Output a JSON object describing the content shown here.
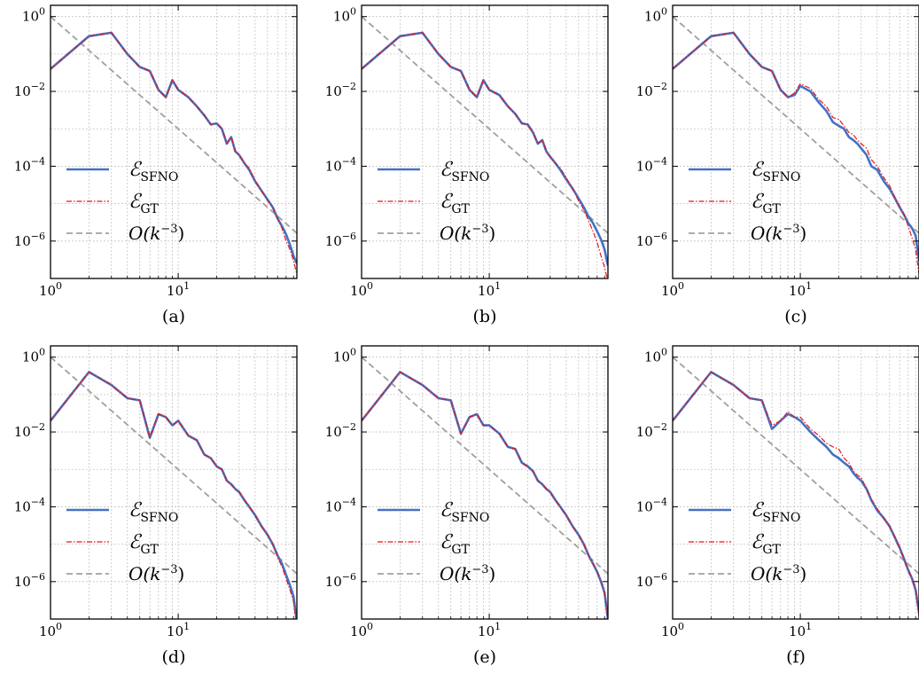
{
  "figure": {
    "colors": {
      "sfno": "#4472c4",
      "gt": "#e8141c",
      "ref": "#a0a0a0",
      "grid": "#c4c4c4"
    }
  },
  "chart_data": [
    {
      "caption": "(a)",
      "type": "line",
      "xscale": "log",
      "yscale": "log",
      "xlim": [
        1,
        85
      ],
      "ylim": [
        1e-07,
        2
      ],
      "xticks": [
        "10^0",
        "10^1"
      ],
      "yticks": [
        "10^0",
        "10^-2",
        "10^-4",
        "10^-6"
      ],
      "grid": true,
      "legend_position": "lower-left",
      "x": [
        1,
        2,
        3,
        4,
        5,
        6,
        7,
        8,
        9,
        10,
        12,
        14,
        16,
        18,
        20,
        22,
        24,
        26,
        28,
        30,
        33,
        36,
        40,
        45,
        50,
        55,
        60,
        65,
        70,
        75,
        80,
        85
      ],
      "series": [
        {
          "name": "E_SFNO",
          "legend_main": "ℰ",
          "legend_sub": "SFNO",
          "style": "solid",
          "values": [
            0.04,
            0.3,
            0.37,
            0.1,
            0.045,
            0.035,
            0.011,
            0.007,
            0.02,
            0.011,
            0.007,
            0.004,
            0.0023,
            0.0013,
            0.0014,
            0.001,
            0.0004,
            0.0006,
            0.00025,
            0.0002,
            0.00012,
            8e-05,
            4e-05,
            2.2e-05,
            1.3e-05,
            8e-06,
            4e-06,
            2.5e-06,
            1.5e-06,
            8e-07,
            4e-07,
            2.5e-07
          ]
        },
        {
          "name": "E_GT",
          "legend_main": "ℰ",
          "legend_sub": "GT",
          "style": "dashdot",
          "values": [
            0.04,
            0.3,
            0.37,
            0.1,
            0.045,
            0.035,
            0.011,
            0.007,
            0.02,
            0.011,
            0.007,
            0.004,
            0.0023,
            0.0013,
            0.0014,
            0.001,
            0.0004,
            0.0006,
            0.00025,
            0.0002,
            0.00012,
            9e-05,
            4e-05,
            2.2e-05,
            1.2e-05,
            8e-06,
            4e-06,
            2.2e-06,
            1e-06,
            6e-07,
            3e-07,
            1.3e-07
          ]
        },
        {
          "name": "O(k^-3)",
          "legend_text": "O(k",
          "legend_sup": "−3",
          "legend_tail": ")",
          "style": "dashed",
          "values": [
            1.0,
            0.125,
            0.037,
            0.0156,
            0.008,
            0.00463,
            0.00292,
            0.00195,
            0.00137,
            0.001,
            0.000579,
            0.000364,
            0.000244,
            0.000171,
            0.000125,
            9.39e-05,
            7.23e-05,
            5.69e-05,
            4.55e-05,
            3.7e-05,
            2.78e-05,
            2.14e-05,
            1.56e-05,
            1.1e-05,
            8e-06,
            6.01e-06,
            4.63e-06,
            3.64e-06,
            2.92e-06,
            2.37e-06,
            1.95e-06,
            1.63e-06
          ]
        }
      ]
    },
    {
      "caption": "(b)",
      "type": "line",
      "xscale": "log",
      "yscale": "log",
      "xlim": [
        1,
        85
      ],
      "ylim": [
        1e-07,
        2
      ],
      "xticks": [
        "10^0",
        "10^1"
      ],
      "yticks": [
        "10^0",
        "10^-2",
        "10^-4",
        "10^-6"
      ],
      "grid": true,
      "legend_position": "lower-left",
      "x": [
        1,
        2,
        3,
        4,
        5,
        6,
        7,
        8,
        9,
        10,
        12,
        14,
        16,
        18,
        20,
        22,
        24,
        26,
        28,
        30,
        33,
        36,
        40,
        45,
        50,
        55,
        60,
        65,
        70,
        75,
        80,
        85
      ],
      "series": [
        {
          "name": "E_SFNO",
          "legend_main": "ℰ",
          "legend_sub": "SFNO",
          "style": "solid",
          "values": [
            0.04,
            0.3,
            0.37,
            0.1,
            0.045,
            0.035,
            0.011,
            0.007,
            0.02,
            0.011,
            0.008,
            0.004,
            0.0025,
            0.0014,
            0.0013,
            0.0008,
            0.0004,
            0.0005,
            0.00025,
            0.00018,
            0.00012,
            8e-05,
            4.5e-05,
            2.5e-05,
            1.4e-05,
            8e-06,
            4.5e-06,
            3e-06,
            1.8e-06,
            1.1e-06,
            6e-07,
            2.2e-07
          ]
        },
        {
          "name": "E_GT",
          "legend_main": "ℰ",
          "legend_sub": "GT",
          "style": "dashdot",
          "values": [
            0.04,
            0.3,
            0.37,
            0.1,
            0.045,
            0.035,
            0.011,
            0.007,
            0.02,
            0.011,
            0.008,
            0.004,
            0.0025,
            0.0014,
            0.0013,
            0.0008,
            0.0004,
            0.0005,
            0.00025,
            0.00018,
            0.00012,
            9e-05,
            5e-05,
            2.5e-05,
            1.2e-05,
            7e-06,
            3.5e-06,
            1.8e-06,
            9e-07,
            4e-07,
            2e-07,
            8e-08
          ]
        },
        {
          "name": "O(k^-3)",
          "legend_text": "O(k",
          "legend_sup": "−3",
          "legend_tail": ")",
          "style": "dashed",
          "values": [
            1.0,
            0.125,
            0.037,
            0.0156,
            0.008,
            0.00463,
            0.00292,
            0.00195,
            0.00137,
            0.001,
            0.000579,
            0.000364,
            0.000244,
            0.000171,
            0.000125,
            9.39e-05,
            7.23e-05,
            5.69e-05,
            4.55e-05,
            3.7e-05,
            2.78e-05,
            2.14e-05,
            1.56e-05,
            1.1e-05,
            8e-06,
            6.01e-06,
            4.63e-06,
            3.64e-06,
            2.92e-06,
            2.37e-06,
            1.95e-06,
            1.63e-06
          ]
        }
      ]
    },
    {
      "caption": "(c)",
      "type": "line",
      "xscale": "log",
      "yscale": "log",
      "xlim": [
        1,
        85
      ],
      "ylim": [
        1e-07,
        2
      ],
      "xticks": [
        "10^0",
        "10^1"
      ],
      "yticks": [
        "10^0",
        "10^-2",
        "10^-4",
        "10^-6"
      ],
      "grid": true,
      "legend_position": "lower-left",
      "x": [
        1,
        2,
        3,
        4,
        5,
        6,
        7,
        8,
        9,
        10,
        12,
        14,
        16,
        18,
        20,
        22,
        24,
        26,
        28,
        30,
        33,
        36,
        40,
        45,
        50,
        55,
        60,
        65,
        70,
        75,
        80,
        85
      ],
      "series": [
        {
          "name": "E_SFNO",
          "legend_main": "ℰ",
          "legend_sub": "SFNO",
          "style": "solid",
          "values": [
            0.04,
            0.3,
            0.37,
            0.1,
            0.045,
            0.035,
            0.011,
            0.007,
            0.008,
            0.014,
            0.01,
            0.005,
            0.003,
            0.0015,
            0.0012,
            0.001,
            0.0006,
            0.0005,
            0.0004,
            0.0003,
            0.0002,
            0.0001,
            8e-05,
            4e-05,
            2.5e-05,
            1.4e-05,
            8e-06,
            5e-06,
            3e-06,
            2.2e-06,
            1.4e-06,
            3e-07
          ]
        },
        {
          "name": "E_GT",
          "legend_main": "ℰ",
          "legend_sub": "GT",
          "style": "dashdot",
          "values": [
            0.04,
            0.3,
            0.37,
            0.1,
            0.045,
            0.035,
            0.011,
            0.007,
            0.009,
            0.016,
            0.012,
            0.006,
            0.004,
            0.002,
            0.0018,
            0.0012,
            0.0008,
            0.0007,
            0.0005,
            0.0004,
            0.0003,
            0.00015,
            0.0001,
            5e-05,
            3e-05,
            1.5e-05,
            8e-06,
            5e-06,
            2.5e-06,
            1.2e-06,
            6e-07,
            1.3e-07
          ]
        },
        {
          "name": "O(k^-3)",
          "legend_text": "O(k",
          "legend_sup": "−3",
          "legend_tail": ")",
          "style": "dashed",
          "values": [
            1.0,
            0.125,
            0.037,
            0.0156,
            0.008,
            0.00463,
            0.00292,
            0.00195,
            0.00137,
            0.001,
            0.000579,
            0.000364,
            0.000244,
            0.000171,
            0.000125,
            9.39e-05,
            7.23e-05,
            5.69e-05,
            4.55e-05,
            3.7e-05,
            2.78e-05,
            2.14e-05,
            1.56e-05,
            1.1e-05,
            8e-06,
            6.01e-06,
            4.63e-06,
            3.64e-06,
            2.92e-06,
            2.37e-06,
            1.95e-06,
            1.63e-06
          ]
        }
      ]
    },
    {
      "caption": "(d)",
      "type": "line",
      "xscale": "log",
      "yscale": "log",
      "xlim": [
        1,
        85
      ],
      "ylim": [
        1e-07,
        2
      ],
      "xticks": [
        "10^0",
        "10^1"
      ],
      "yticks": [
        "10^0",
        "10^-2",
        "10^-4",
        "10^-6"
      ],
      "grid": true,
      "legend_position": "lower-left",
      "x": [
        1,
        2,
        3,
        4,
        5,
        6,
        7,
        8,
        9,
        10,
        12,
        14,
        16,
        18,
        20,
        22,
        24,
        26,
        28,
        30,
        33,
        36,
        40,
        45,
        50,
        55,
        60,
        65,
        70,
        75,
        80,
        85
      ],
      "series": [
        {
          "name": "E_SFNO",
          "legend_main": "ℰ",
          "legend_sub": "SFNO",
          "style": "solid",
          "values": [
            0.02,
            0.4,
            0.18,
            0.08,
            0.07,
            0.007,
            0.03,
            0.025,
            0.015,
            0.02,
            0.008,
            0.006,
            0.0025,
            0.002,
            0.0012,
            0.001,
            0.0005,
            0.0004,
            0.0003,
            0.00025,
            0.00015,
            0.0001,
            6e-05,
            3e-05,
            1.8e-05,
            1e-05,
            5e-06,
            3e-06,
            1.5e-06,
            8e-07,
            4e-07,
            8e-08
          ]
        },
        {
          "name": "E_GT",
          "legend_main": "ℰ",
          "legend_sub": "GT",
          "style": "dashdot",
          "values": [
            0.02,
            0.4,
            0.18,
            0.08,
            0.07,
            0.007,
            0.03,
            0.025,
            0.015,
            0.02,
            0.008,
            0.006,
            0.0025,
            0.002,
            0.0012,
            0.001,
            0.0005,
            0.0004,
            0.0003,
            0.00025,
            0.00015,
            0.0001,
            6e-05,
            3e-05,
            1.8e-05,
            1e-05,
            4.5e-06,
            2.5e-06,
            1.2e-06,
            6e-07,
            3e-07,
            6e-08
          ]
        },
        {
          "name": "O(k^-3)",
          "legend_text": "O(k",
          "legend_sup": "−3",
          "legend_tail": ")",
          "style": "dashed",
          "values": [
            1.0,
            0.125,
            0.037,
            0.0156,
            0.008,
            0.00463,
            0.00292,
            0.00195,
            0.00137,
            0.001,
            0.000579,
            0.000364,
            0.000244,
            0.000171,
            0.000125,
            9.39e-05,
            7.23e-05,
            5.69e-05,
            4.55e-05,
            3.7e-05,
            2.78e-05,
            2.14e-05,
            1.56e-05,
            1.1e-05,
            8e-06,
            6.01e-06,
            4.63e-06,
            3.64e-06,
            2.92e-06,
            2.37e-06,
            1.95e-06,
            1.63e-06
          ]
        }
      ]
    },
    {
      "caption": "(e)",
      "type": "line",
      "xscale": "log",
      "yscale": "log",
      "xlim": [
        1,
        85
      ],
      "ylim": [
        1e-07,
        2
      ],
      "xticks": [
        "10^0",
        "10^1"
      ],
      "yticks": [
        "10^0",
        "10^-2",
        "10^-4",
        "10^-6"
      ],
      "grid": true,
      "legend_position": "lower-left",
      "x": [
        1,
        2,
        3,
        4,
        5,
        6,
        7,
        8,
        9,
        10,
        12,
        14,
        16,
        18,
        20,
        22,
        24,
        26,
        28,
        30,
        33,
        36,
        40,
        45,
        50,
        55,
        60,
        65,
        70,
        75,
        80,
        85
      ],
      "series": [
        {
          "name": "E_SFNO",
          "legend_main": "ℰ",
          "legend_sub": "SFNO",
          "style": "solid",
          "values": [
            0.02,
            0.4,
            0.18,
            0.08,
            0.07,
            0.009,
            0.025,
            0.03,
            0.015,
            0.015,
            0.009,
            0.004,
            0.0035,
            0.0015,
            0.0012,
            0.0009,
            0.0005,
            0.0004,
            0.0003,
            0.00025,
            0.00015,
            0.0001,
            6e-05,
            3e-05,
            1.8e-05,
            1e-05,
            5e-06,
            3e-06,
            1.8e-06,
            1e-06,
            5e-07,
            1e-07
          ]
        },
        {
          "name": "E_GT",
          "legend_main": "ℰ",
          "legend_sub": "GT",
          "style": "dashdot",
          "values": [
            0.02,
            0.4,
            0.18,
            0.08,
            0.07,
            0.009,
            0.025,
            0.03,
            0.015,
            0.015,
            0.009,
            0.004,
            0.0035,
            0.0015,
            0.0012,
            0.0009,
            0.0005,
            0.0004,
            0.0003,
            0.00025,
            0.00015,
            0.0001,
            6e-05,
            3e-05,
            1.8e-05,
            1e-05,
            5e-06,
            3e-06,
            1.8e-06,
            1e-06,
            5e-07,
            1e-07
          ]
        },
        {
          "name": "O(k^-3)",
          "legend_text": "O(k",
          "legend_sup": "−3",
          "legend_tail": ")",
          "style": "dashed",
          "values": [
            1.0,
            0.125,
            0.037,
            0.0156,
            0.008,
            0.00463,
            0.00292,
            0.00195,
            0.00137,
            0.001,
            0.000579,
            0.000364,
            0.000244,
            0.000171,
            0.000125,
            9.39e-05,
            7.23e-05,
            5.69e-05,
            4.55e-05,
            3.7e-05,
            2.78e-05,
            2.14e-05,
            1.56e-05,
            1.1e-05,
            8e-06,
            6.01e-06,
            4.63e-06,
            3.64e-06,
            2.92e-06,
            2.37e-06,
            1.95e-06,
            1.63e-06
          ]
        }
      ]
    },
    {
      "caption": "(f)",
      "type": "line",
      "xscale": "log",
      "yscale": "log",
      "xlim": [
        1,
        85
      ],
      "ylim": [
        1e-07,
        2
      ],
      "xticks": [
        "10^0",
        "10^1"
      ],
      "yticks": [
        "10^0",
        "10^-2",
        "10^-4",
        "10^-6"
      ],
      "grid": true,
      "legend_position": "lower-left",
      "x": [
        1,
        2,
        3,
        4,
        5,
        6,
        7,
        8,
        9,
        10,
        12,
        14,
        16,
        18,
        20,
        22,
        24,
        26,
        28,
        30,
        33,
        36,
        40,
        45,
        50,
        55,
        60,
        65,
        70,
        75,
        80,
        85
      ],
      "series": [
        {
          "name": "E_SFNO",
          "legend_main": "ℰ",
          "legend_sub": "SFNO",
          "style": "solid",
          "values": [
            0.02,
            0.4,
            0.18,
            0.08,
            0.07,
            0.012,
            0.02,
            0.03,
            0.025,
            0.02,
            0.01,
            0.006,
            0.004,
            0.0025,
            0.002,
            0.0015,
            0.0012,
            0.0008,
            0.0006,
            0.0005,
            0.0003,
            0.00015,
            8e-05,
            5e-05,
            3e-05,
            1.5e-05,
            8e-06,
            4e-06,
            2e-06,
            1.2e-06,
            6e-07,
            1.5e-07
          ]
        },
        {
          "name": "E_GT",
          "legend_main": "ℰ",
          "legend_sub": "GT",
          "style": "dashdot",
          "values": [
            0.02,
            0.4,
            0.18,
            0.08,
            0.07,
            0.015,
            0.02,
            0.035,
            0.025,
            0.025,
            0.012,
            0.008,
            0.005,
            0.004,
            0.0035,
            0.002,
            0.0015,
            0.0009,
            0.0007,
            0.0006,
            0.0003,
            0.00016,
            9e-05,
            5e-05,
            3e-05,
            1.6e-05,
            8e-06,
            4e-06,
            2e-06,
            1.2e-06,
            6e-07,
            1.2e-07
          ]
        },
        {
          "name": "O(k^-3)",
          "legend_text": "O(k",
          "legend_sup": "−3",
          "legend_tail": ")",
          "style": "dashed",
          "values": [
            1.0,
            0.125,
            0.037,
            0.0156,
            0.008,
            0.00463,
            0.00292,
            0.00195,
            0.00137,
            0.001,
            0.000579,
            0.000364,
            0.000244,
            0.000171,
            0.000125,
            9.39e-05,
            7.23e-05,
            5.69e-05,
            4.55e-05,
            3.7e-05,
            2.78e-05,
            2.14e-05,
            1.56e-05,
            1.1e-05,
            8e-06,
            6.01e-06,
            4.63e-06,
            3.64e-06,
            2.92e-06,
            2.37e-06,
            1.95e-06,
            1.63e-06
          ]
        }
      ]
    }
  ]
}
